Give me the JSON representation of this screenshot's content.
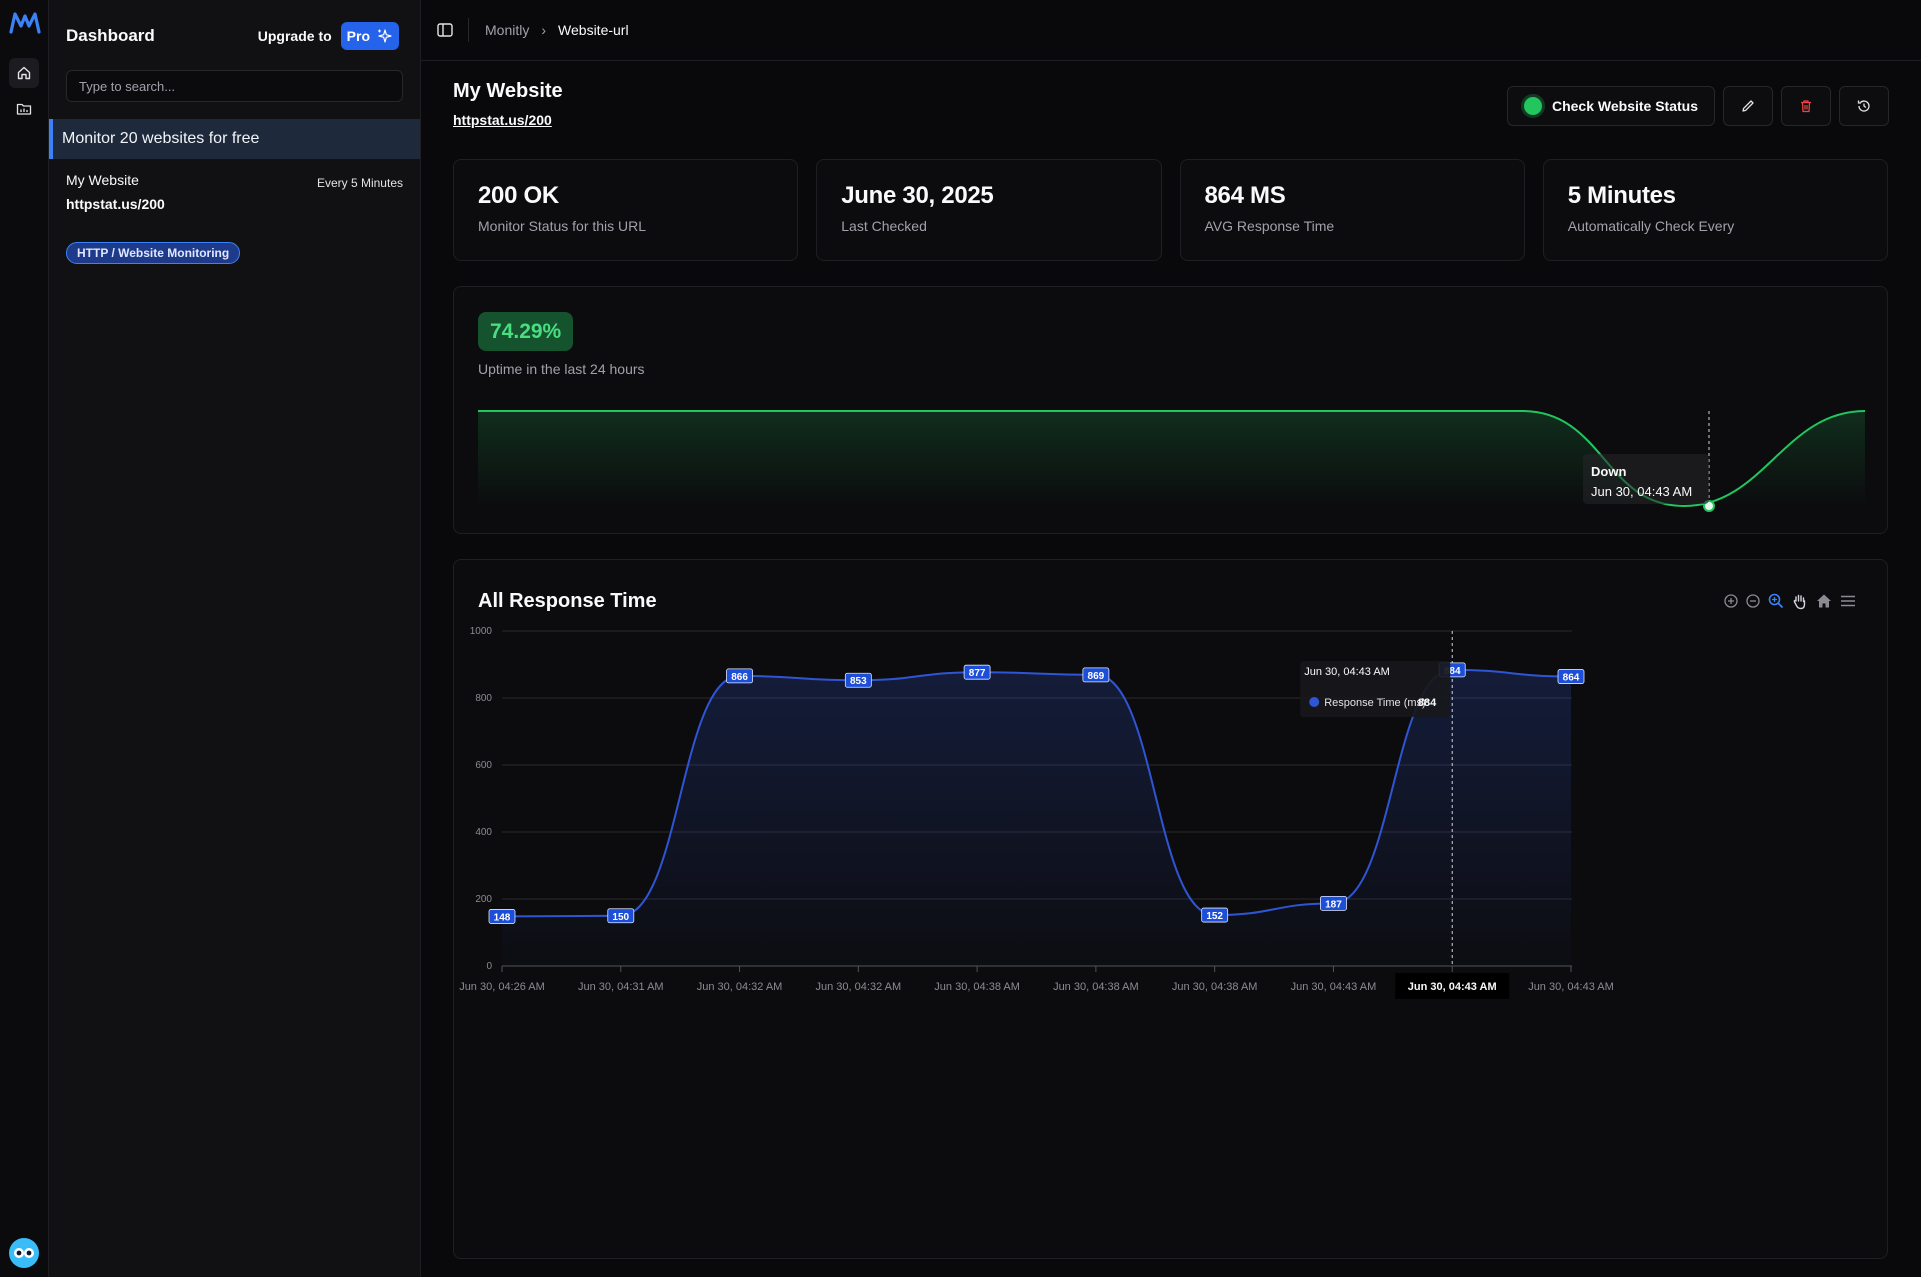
{
  "sidebar": {
    "title": "Dashboard",
    "upgrade_label": "Upgrade to",
    "pro_label": "Pro",
    "search_placeholder": "Type to search...",
    "promo_text": "Monitor 20 websites for free",
    "site": {
      "name": "My Website",
      "frequency": "Every 5 Minutes",
      "url": "httpstat.us/200",
      "badge": "HTTP / Website Monitoring"
    }
  },
  "breadcrumb": {
    "root": "Monitly",
    "current": "Website-url"
  },
  "page": {
    "title": "My Website",
    "url": "httpstat.us/200",
    "check_status_label": "Check Website Status"
  },
  "stats": [
    {
      "value": "200 OK",
      "label": "Monitor Status for this URL"
    },
    {
      "value": "June 30, 2025",
      "label": "Last Checked"
    },
    {
      "value": "864 MS",
      "label": "AVG Response Time"
    },
    {
      "value": "5 Minutes",
      "label": "Automatically Check Every"
    }
  ],
  "uptime": {
    "percent": "74.29%",
    "label": "Uptime in the last 24 hours",
    "tooltip_title": "Down",
    "tooltip_time": "Jun 30, 04:43 AM",
    "line_color": "#22c55e"
  },
  "colors": {
    "accent": "#2563eb",
    "series": "#2f55d4",
    "success": "#22c55e"
  },
  "chart_data": {
    "type": "area",
    "title": "All Response Time",
    "x": [
      "Jun 30, 04:26 AM",
      "Jun 30, 04:31 AM",
      "Jun 30, 04:32 AM",
      "Jun 30, 04:32 AM",
      "Jun 30, 04:38 AM",
      "Jun 30, 04:38 AM",
      "Jun 30, 04:38 AM",
      "Jun 30, 04:43 AM",
      "Jun 30, 04:43 AM",
      "Jun 30, 04:43 AM"
    ],
    "series": [
      {
        "name": "Response Time (ms)",
        "values": [
          148,
          150,
          866,
          853,
          877,
          869,
          152,
          187,
          884,
          864
        ]
      }
    ],
    "yticks": [
      0,
      200,
      400,
      600,
      800,
      1000
    ],
    "ylim": [
      0,
      1000
    ],
    "grid": true,
    "tooltip": {
      "title": "Jun 30, 04:43 AM",
      "series": "Response Time (ms):",
      "value": "884",
      "index": 8
    }
  }
}
